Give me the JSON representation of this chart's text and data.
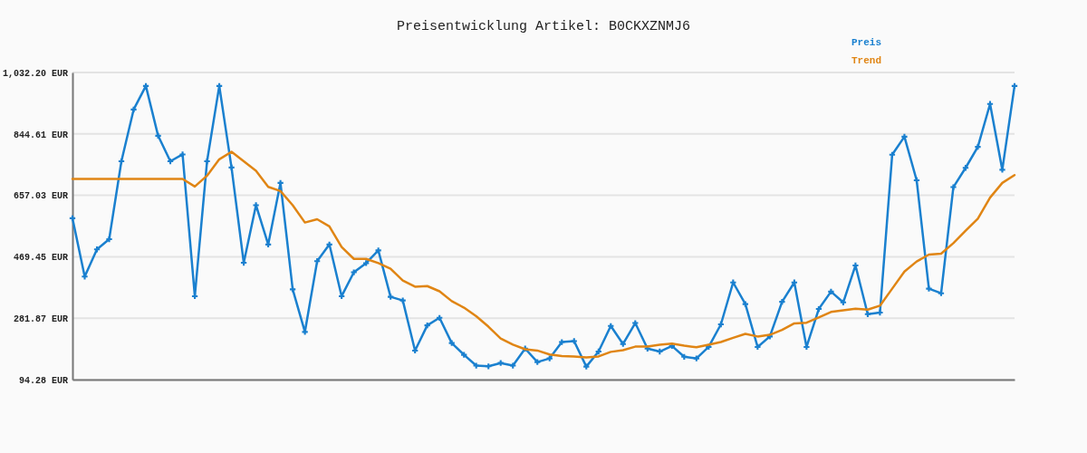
{
  "chart_data": {
    "type": "line",
    "title": "Preisentwicklung Artikel: B0CKXZNMJ6",
    "categories": [
      null,
      null,
      null,
      null,
      null,
      null,
      null,
      null,
      null,
      null,
      null,
      null,
      null,
      null,
      null,
      null,
      null,
      null,
      null,
      null,
      null,
      null,
      null,
      null,
      null,
      null,
      null,
      null,
      null,
      null,
      null,
      null,
      null,
      null,
      null,
      null,
      null,
      null,
      null,
      null,
      null,
      null,
      null,
      null,
      null,
      null,
      null,
      null,
      null,
      null,
      null,
      null,
      null,
      null,
      null,
      null,
      null,
      null,
      null,
      null,
      null,
      null,
      null,
      null,
      null,
      null,
      null,
      null,
      null,
      null,
      null,
      null,
      null,
      null,
      null,
      null,
      null,
      null
    ],
    "series": [
      {
        "name": "Preis",
        "color": "#1a80cf",
        "marker": "cross",
        "values": [
          587,
          409,
          492,
          523,
          761,
          919,
          991,
          839,
          761,
          782,
          349,
          761,
          991,
          742,
          451,
          627,
          507,
          695,
          370,
          240,
          456,
          507,
          349,
          422,
          450,
          489,
          347,
          336,
          183,
          260,
          283,
          206,
          170,
          137,
          135,
          145,
          137,
          189,
          148,
          159,
          209,
          212,
          134,
          180,
          258,
          203,
          267,
          189,
          180,
          197,
          164,
          159,
          194,
          263,
          391,
          325,
          194,
          226,
          332,
          391,
          194,
          310,
          363,
          330,
          443,
          294,
          299,
          781,
          836,
          703,
          372,
          358,
          682,
          741,
          805,
          936,
          735,
          991
        ]
      },
      {
        "name": "Trend",
        "color": "#e08514",
        "values": [
          707,
          707,
          707,
          707,
          707,
          707,
          707,
          707,
          707,
          707,
          684,
          717,
          767,
          790,
          761,
          732,
          683,
          670,
          627,
          574,
          584,
          562,
          499,
          463,
          463,
          450,
          433,
          397,
          378,
          380,
          364,
          334,
          314,
          288,
          256,
          220,
          201,
          187,
          183,
          171,
          166,
          165,
          162,
          165,
          179,
          184,
          195,
          195,
          201,
          204,
          198,
          193,
          201,
          209,
          222,
          234,
          226,
          231,
          246,
          266,
          268,
          284,
          301,
          306,
          311,
          308,
          320,
          372,
          424,
          455,
          476,
          479,
          511,
          549,
          586,
          650,
          695,
          719
        ]
      }
    ],
    "ylim": [
      94.28,
      1032.2
    ],
    "yticks": [
      {
        "value": 94.28,
        "label": "94.28 EUR"
      },
      {
        "value": 281.87,
        "label": "281.87 EUR"
      },
      {
        "value": 469.45,
        "label": "469.45 EUR"
      },
      {
        "value": 657.03,
        "label": "657.03 EUR"
      },
      {
        "value": 844.61,
        "label": "844.61 EUR"
      },
      {
        "value": 1032.2,
        "label": "1,032.20 EUR"
      }
    ],
    "grid": "y",
    "legend": "top right",
    "tick_labels": "y"
  }
}
